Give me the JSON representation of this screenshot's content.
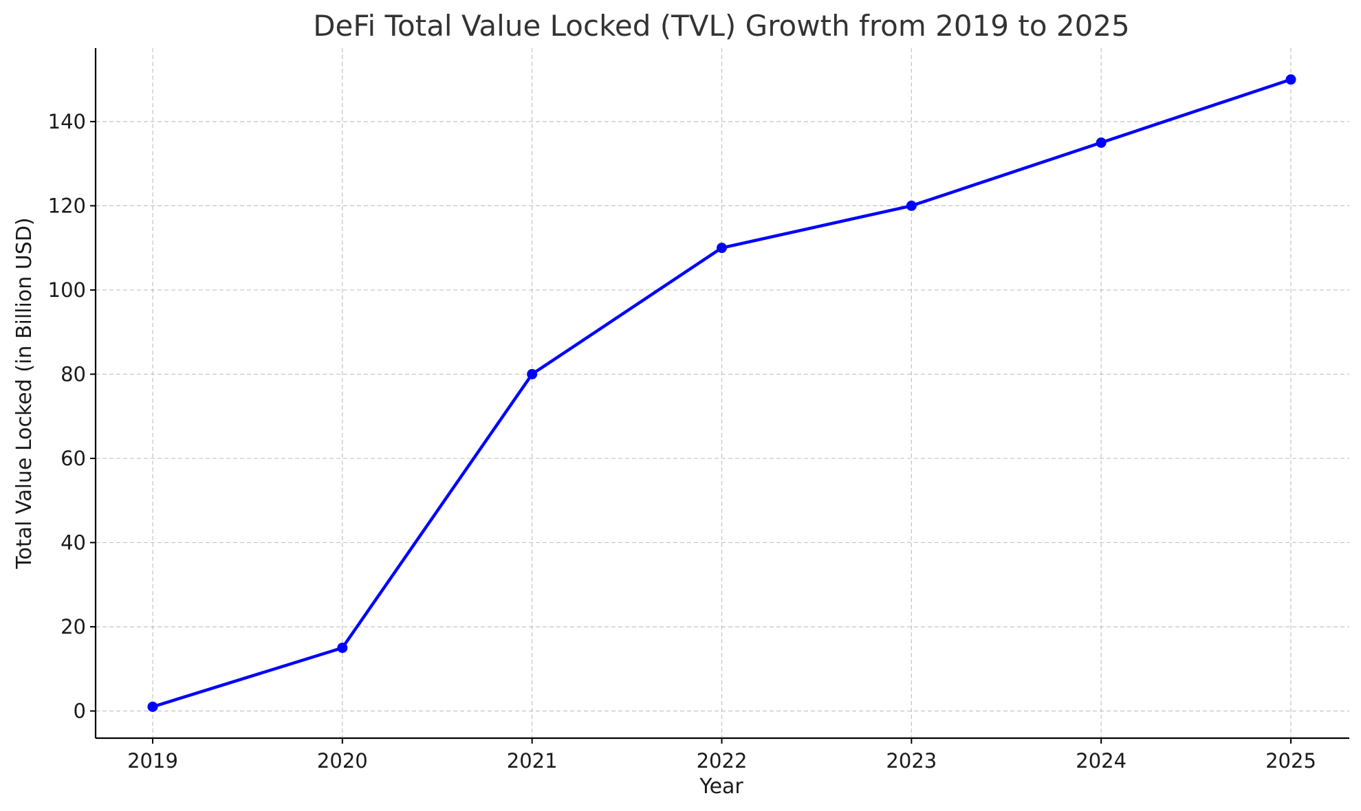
{
  "chart_data": {
    "type": "line",
    "title": "DeFi Total Value Locked (TVL) Growth from 2019 to 2025",
    "xlabel": "Year",
    "ylabel": "Total Value Locked (in Billion USD)",
    "categories": [
      "2019",
      "2020",
      "2021",
      "2022",
      "2023",
      "2024",
      "2025"
    ],
    "series": [
      {
        "values": [
          1,
          15,
          80,
          110,
          120,
          135,
          150
        ],
        "color": "#0000ff",
        "marker": "circle"
      }
    ],
    "yticks": [
      0,
      20,
      40,
      60,
      80,
      100,
      120,
      140
    ],
    "ylim": [
      -6.45,
      157.45
    ],
    "grid": true,
    "legend": "none"
  }
}
